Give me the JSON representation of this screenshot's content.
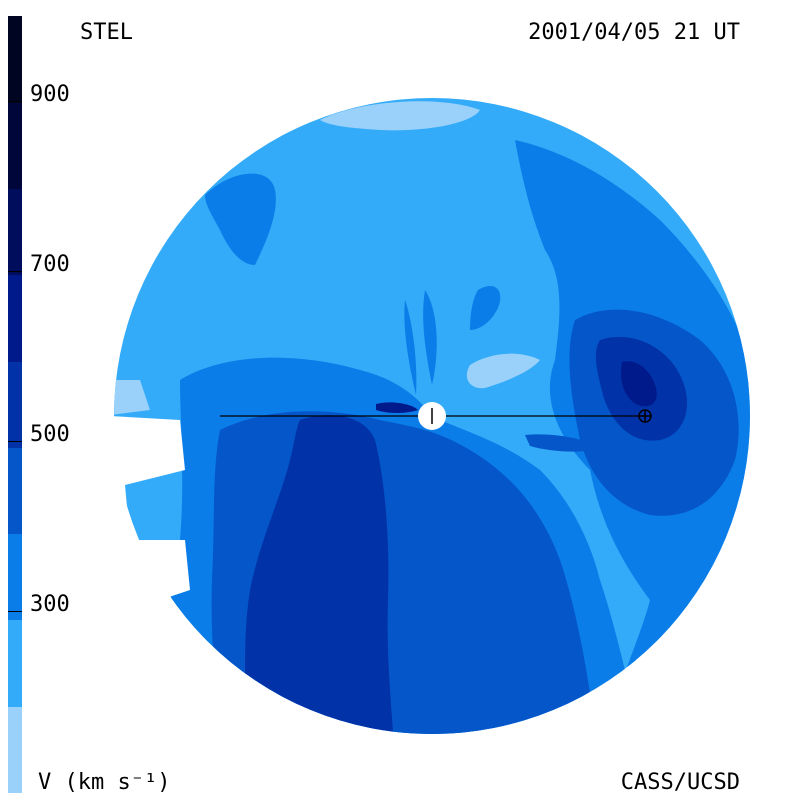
{
  "header": {
    "source": "STEL",
    "datetime": "2001/04/05 21 UT"
  },
  "footer": {
    "unit_label": "V (km s⁻¹)",
    "credit": "CASS/UCSD"
  },
  "colorbar": {
    "ticks": [
      "900",
      "700",
      "500",
      "300"
    ],
    "levels": [
      {
        "color": "#99d1fb"
      },
      {
        "color": "#33abf9"
      },
      {
        "color": "#0b7de8"
      },
      {
        "color": "#0556c9"
      },
      {
        "color": "#0232a8"
      },
      {
        "color": "#001a8c"
      },
      {
        "color": "#000d5c"
      },
      {
        "color": "#00063a"
      },
      {
        "color": "#000522"
      }
    ]
  },
  "map": {
    "marker_sun": "sun-marker",
    "marker_earth": "earth-marker",
    "colors": {
      "light": "#99d1fb",
      "base": "#33abf9",
      "mid": "#0b7de8",
      "dark": "#0556c9",
      "darker": "#0232a8",
      "darkest": "#001a8c",
      "deep": "#000d5c"
    }
  }
}
